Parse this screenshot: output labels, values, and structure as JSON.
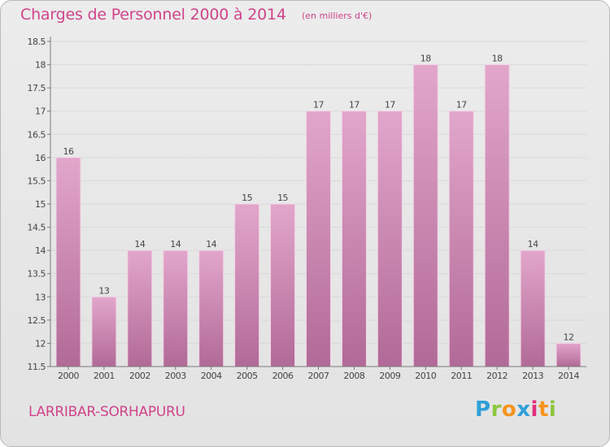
{
  "header": {
    "title": "Charges de Personnel 2000 à 2014",
    "unit": "(en milliers d'€)"
  },
  "footer": {
    "commune": "LARRIBAR-SORHAPURU",
    "logo_text": "Proxiti",
    "logo_colors": [
      "#2f9fd8",
      "#8cc63f",
      "#f7941d",
      "#2f9fd8",
      "#e0307a",
      "#f7941d",
      "#8cc63f"
    ]
  },
  "colors": {
    "accent": "#d0448a",
    "bar_top": "#e2a6cb",
    "bar_bottom": "#b16a97",
    "bar_edge": "#f2d4e6",
    "axis": "#7a7a7a",
    "grid": "#d9d9d9",
    "tick_text": "#444444"
  },
  "chart_data": {
    "type": "bar",
    "categories": [
      "2000",
      "2001",
      "2002",
      "2003",
      "2004",
      "2005",
      "2006",
      "2007",
      "2008",
      "2009",
      "2010",
      "2011",
      "2012",
      "2013",
      "2014"
    ],
    "values": [
      16,
      13,
      14,
      14,
      14,
      15,
      15,
      17,
      17,
      17,
      18,
      17,
      18,
      14,
      12
    ],
    "data_labels": [
      "16",
      "13",
      "14",
      "14",
      "14",
      "15",
      "15",
      "17",
      "17",
      "17",
      "18",
      "17",
      "18",
      "14",
      "12"
    ],
    "title": "Charges de Personnel 2000 à 2014",
    "subtitle": "(en milliers d'€)",
    "xlabel": "",
    "ylabel": "",
    "ylim": [
      11.5,
      18.5
    ],
    "yticks": [
      11.5,
      12,
      12.5,
      13,
      13.5,
      14,
      14.5,
      15,
      15.5,
      16,
      16.5,
      17,
      17.5,
      18,
      18.5
    ],
    "ytick_labels": [
      "11.5",
      "12",
      "12.5",
      "13",
      "13.5",
      "14",
      "14.5",
      "15",
      "15.5",
      "16",
      "16.5",
      "17",
      "17.5",
      "18",
      "18.5"
    ],
    "grid": true,
    "legend": "none"
  }
}
